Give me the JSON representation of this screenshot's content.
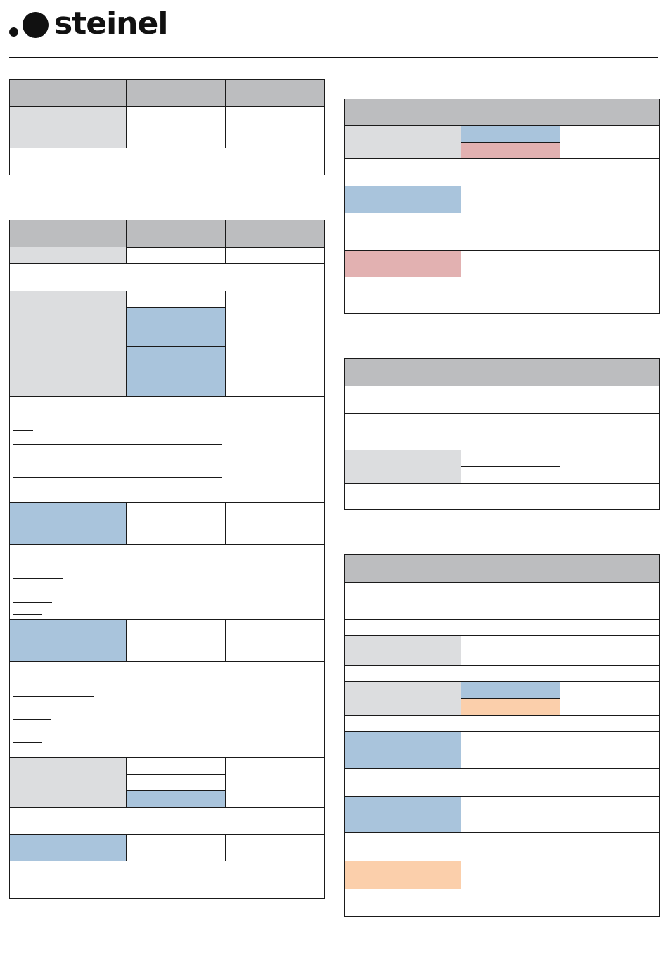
{
  "brand": {
    "name": "steinel"
  },
  "colors": {
    "header_gray": "#bcbdbf",
    "light_gray": "#dcdddf",
    "blue": "#a9c4dc",
    "pink": "#e2b1b1",
    "peach": "#fbcfab",
    "border": "#1a1a1a"
  }
}
